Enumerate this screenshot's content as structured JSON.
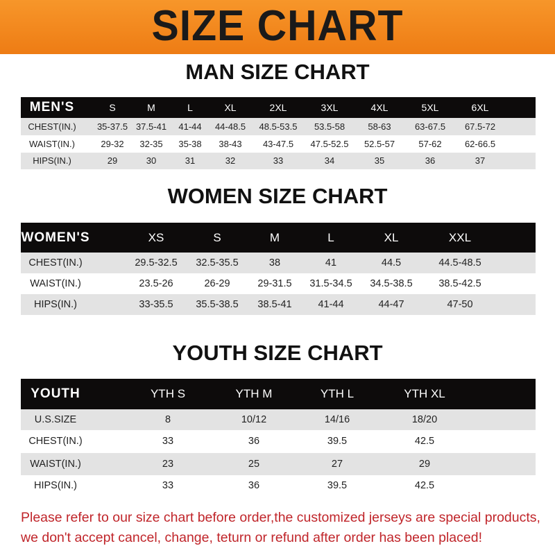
{
  "banner_title": "SIZE CHART",
  "men": {
    "title": "MAN SIZE CHART",
    "header": [
      "MEN'S",
      "S",
      "M",
      "L",
      "XL",
      "2XL",
      "3XL",
      "4XL",
      "5XL",
      "6XL"
    ],
    "rows": [
      [
        "CHEST(IN.)",
        "35-37.5",
        "37.5-41",
        "41-44",
        "44-48.5",
        "48.5-53.5",
        "53.5-58",
        "58-63",
        "63-67.5",
        "67.5-72"
      ],
      [
        "WAIST(IN.)",
        "29-32",
        "32-35",
        "35-38",
        "38-43",
        "43-47.5",
        "47.5-52.5",
        "52.5-57",
        "57-62",
        "62-66.5"
      ],
      [
        "HIPS(IN.)",
        "29",
        "30",
        "31",
        "32",
        "33",
        "34",
        "35",
        "36",
        "37"
      ]
    ]
  },
  "women": {
    "title": "WOMEN SIZE CHART",
    "header": [
      "WOMEN'S",
      "XS",
      "S",
      "M",
      "L",
      "XL",
      "XXL"
    ],
    "rows": [
      [
        "CHEST(IN.)",
        "29.5-32.5",
        "32.5-35.5",
        "38",
        "41",
        "44.5",
        "44.5-48.5"
      ],
      [
        "WAIST(IN.)",
        "23.5-26",
        "26-29",
        "29-31.5",
        "31.5-34.5",
        "34.5-38.5",
        "38.5-42.5"
      ],
      [
        "HIPS(IN.)",
        "33-35.5",
        "35.5-38.5",
        "38.5-41",
        "41-44",
        "44-47",
        "47-50"
      ]
    ]
  },
  "youth": {
    "title": "YOUTH SIZE CHART",
    "header": [
      "YOUTH",
      "YTH S",
      "YTH M",
      "YTH L",
      "YTH XL"
    ],
    "rows": [
      [
        "U.S.SIZE",
        "8",
        "10/12",
        "14/16",
        "18/20"
      ],
      [
        "CHEST(IN.)",
        "33",
        "36",
        "39.5",
        "42.5"
      ],
      [
        "WAIST(IN.)",
        "23",
        "25",
        "27",
        "29"
      ],
      [
        "HIPS(IN.)",
        "33",
        "36",
        "39.5",
        "42.5"
      ]
    ]
  },
  "footer": {
    "line1": "Please refer to our size chart before order,the customized jerseys are special products,",
    "line2": "we don't accept cancel, change, teturn or refund after order has been placed!"
  },
  "colors": {
    "banner": "#f28a1e",
    "header_row": "#0d0b0b",
    "notice": "#c0252a"
  }
}
